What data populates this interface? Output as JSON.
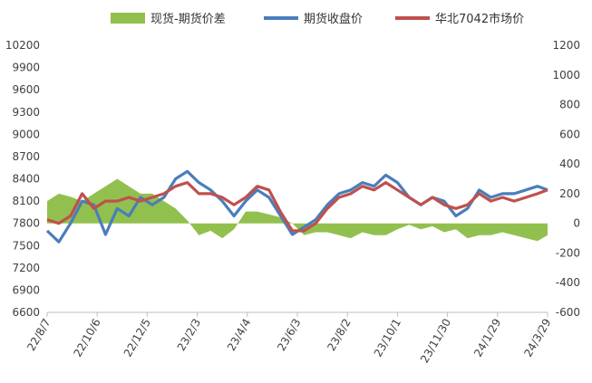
{
  "chart_data": {
    "type": "line",
    "title": "",
    "legend": {
      "placement": "top",
      "entries": [
        {
          "label": "现货-期货价差",
          "color": "#92C04E",
          "kind": "area"
        },
        {
          "label": "期货收盘价",
          "color": "#4A7EBB",
          "kind": "line"
        },
        {
          "label": "华北7042市场价",
          "color": "#C0504D",
          "kind": "line"
        }
      ]
    },
    "x_tick_labels": [
      "22/8/7",
      "22/10/6",
      "22/12/5",
      "23/2/3",
      "23/4/4",
      "23/6/3",
      "23/8/2",
      "23/10/1",
      "23/11/30",
      "24/1/29",
      "24/3/29"
    ],
    "y_left": {
      "min": 6600,
      "max": 10200,
      "step": 300,
      "ticks": [
        "10200",
        "9900",
        "9600",
        "9300",
        "9000",
        "8700",
        "8400",
        "8100",
        "7800",
        "7500",
        "7200",
        "6900",
        "6600"
      ]
    },
    "y_right": {
      "min": -600,
      "max": 1200,
      "step": 200,
      "ticks": [
        "1200",
        "1000",
        "800",
        "600",
        "400",
        "200",
        "0",
        "-200",
        "-400",
        "-600"
      ]
    },
    "grid": false,
    "x": [
      "2022-08-07",
      "2022-08-21",
      "2022-09-04",
      "2022-09-18",
      "2022-10-02",
      "2022-10-16",
      "2022-10-30",
      "2022-11-13",
      "2022-11-27",
      "2022-12-11",
      "2022-12-25",
      "2023-01-08",
      "2023-01-22",
      "2023-02-05",
      "2023-02-19",
      "2023-03-05",
      "2023-03-19",
      "2023-04-02",
      "2023-04-16",
      "2023-04-30",
      "2023-05-14",
      "2023-05-28",
      "2023-06-11",
      "2023-06-25",
      "2023-07-09",
      "2023-07-23",
      "2023-08-06",
      "2023-08-20",
      "2023-09-03",
      "2023-09-17",
      "2023-10-01",
      "2023-10-15",
      "2023-10-29",
      "2023-11-12",
      "2023-11-26",
      "2023-12-10",
      "2023-12-24",
      "2024-01-07",
      "2024-01-21",
      "2024-02-04",
      "2024-02-18",
      "2024-03-03",
      "2024-03-17",
      "2024-03-29"
    ],
    "series": [
      {
        "name": "现货-期货价差",
        "axis": "right",
        "values": [
          150,
          200,
          180,
          150,
          200,
          250,
          300,
          250,
          200,
          200,
          150,
          100,
          20,
          -80,
          -50,
          -100,
          -40,
          80,
          80,
          60,
          40,
          0,
          -80,
          -60,
          -60,
          -80,
          -100,
          -60,
          -80,
          -80,
          -40,
          -10,
          -40,
          -20,
          -60,
          -40,
          -100,
          -80,
          -80,
          -60,
          -80,
          -100,
          -120,
          -80
        ]
      },
      {
        "name": "期货收盘价",
        "axis": "left",
        "values": [
          7700,
          7550,
          7800,
          8100,
          8050,
          7650,
          8000,
          7900,
          8150,
          8050,
          8150,
          8400,
          8500,
          8350,
          8250,
          8100,
          7900,
          8100,
          8250,
          8150,
          7900,
          7650,
          7750,
          7850,
          8050,
          8200,
          8250,
          8350,
          8300,
          8450,
          8350,
          8150,
          8050,
          8150,
          8100,
          7900,
          8000,
          8250,
          8150,
          8200,
          8200,
          8250,
          8300,
          8250
        ]
      },
      {
        "name": "华北7042市场价",
        "axis": "left",
        "values": [
          7850,
          7800,
          7900,
          8200,
          8000,
          8100,
          8100,
          8150,
          8100,
          8150,
          8200,
          8300,
          8350,
          8200,
          8200,
          8150,
          8050,
          8150,
          8300,
          8250,
          7950,
          7700,
          7700,
          7800,
          8000,
          8150,
          8200,
          8300,
          8250,
          8350,
          8250,
          8150,
          8050,
          8150,
          8050,
          8000,
          8050,
          8200,
          8100,
          8150,
          8100,
          8150,
          8200,
          8250
        ]
      }
    ]
  }
}
